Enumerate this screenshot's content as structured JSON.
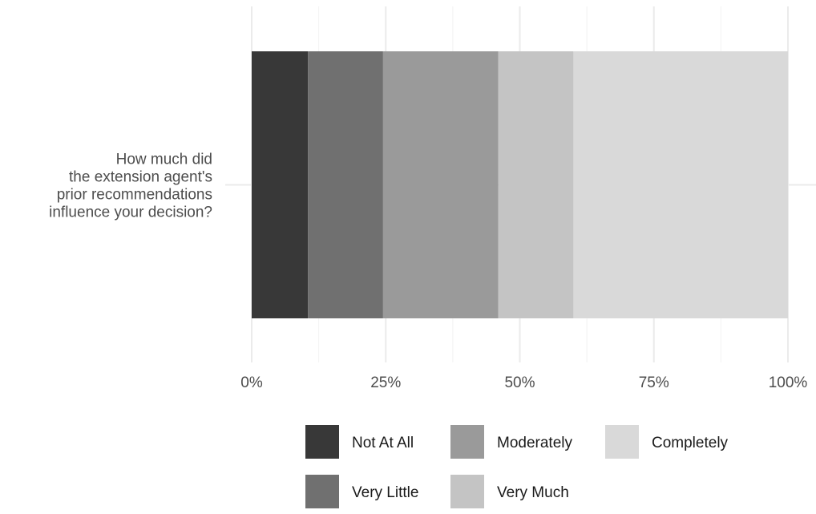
{
  "chart_data": {
    "type": "bar",
    "orientation": "horizontal",
    "stacked": true,
    "categories": [
      "How much did the extension agent's prior recommendations influence your decision?"
    ],
    "category_label_lines": [
      "How much did",
      "the extension agent's",
      "prior recommendations",
      "influence your decision?"
    ],
    "series": [
      {
        "name": "Not At All",
        "values": [
          10.5
        ],
        "color": "#383838"
      },
      {
        "name": "Very Little",
        "values": [
          14.0
        ],
        "color": "#707070"
      },
      {
        "name": "Moderately",
        "values": [
          21.5
        ],
        "color": "#9a9a9a"
      },
      {
        "name": "Very Much",
        "values": [
          14.0
        ],
        "color": "#c4c4c4"
      },
      {
        "name": "Completely",
        "values": [
          40.0
        ],
        "color": "#d9d9d9"
      }
    ],
    "xlim": [
      0,
      100
    ],
    "x_ticks": [
      0,
      25,
      50,
      75,
      100
    ],
    "x_tick_labels": [
      "0%",
      "25%",
      "50%",
      "75%",
      "100%"
    ],
    "grid": true,
    "legend_position": "bottom",
    "legend_rows": [
      [
        "Not At All",
        "Moderately",
        "Completely"
      ],
      [
        "Very Little",
        "Very Much"
      ]
    ],
    "title": "",
    "xlabel": "",
    "ylabel": ""
  }
}
